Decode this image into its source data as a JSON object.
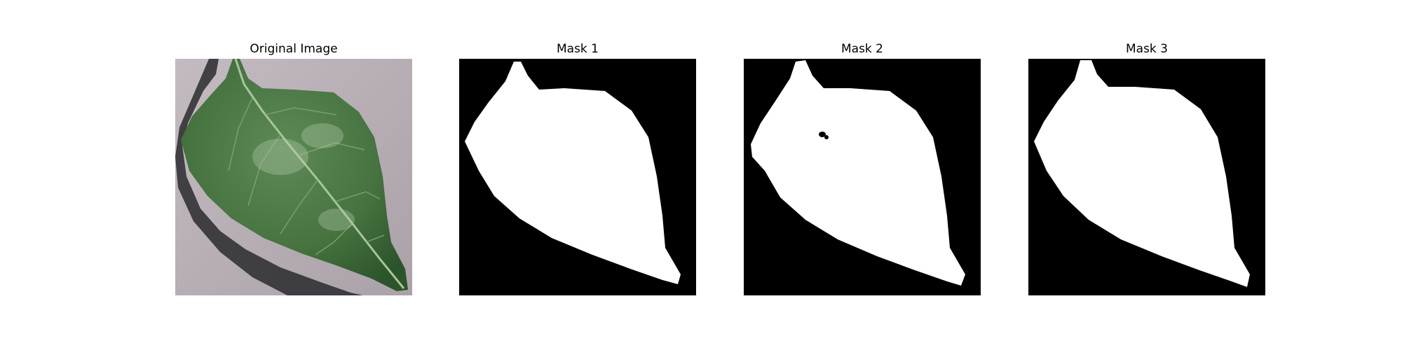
{
  "figure": {
    "panels": [
      {
        "title": "Original Image",
        "kind": "photo"
      },
      {
        "title": "Mask 1",
        "kind": "mask"
      },
      {
        "title": "Mask 2",
        "kind": "mask"
      },
      {
        "title": "Mask 3",
        "kind": "mask"
      }
    ]
  },
  "colors": {
    "background": "#ffffff",
    "mask_background": "#000000",
    "mask_foreground": "#ffffff",
    "photo_surface": "#b8b0b6",
    "leaf_dark": "#2f5a2f",
    "leaf_mid": "#4f7b48",
    "leaf_light": "#7a9c6e",
    "leaf_vein": "#a8c59a",
    "shadow": "#2a2a2e"
  }
}
